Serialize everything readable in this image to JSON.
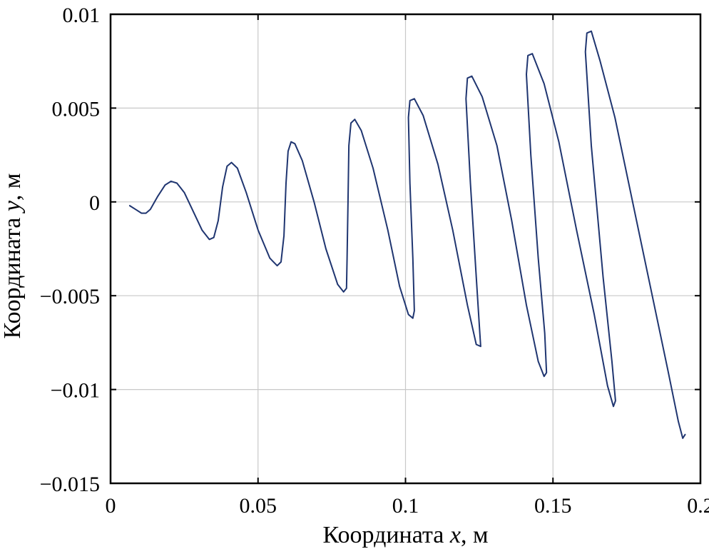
{
  "chart_data": {
    "type": "line",
    "xlabel_prefix": "Координата ",
    "xlabel_var": "x",
    "xlabel_suffix": ", м",
    "ylabel_prefix": "Координата ",
    "ylabel_var": "y",
    "ylabel_suffix": ", м",
    "xlim": [
      0,
      0.2
    ],
    "ylim": [
      -0.015,
      0.01
    ],
    "xticks": [
      0,
      0.05,
      0.1,
      0.15,
      0.2
    ],
    "xtick_labels": [
      "0",
      "0.05",
      "0.1",
      "0.15",
      "0.2"
    ],
    "yticks": [
      -0.015,
      -0.01,
      -0.005,
      0,
      0.005,
      0.01
    ],
    "ytick_labels": [
      "−0.015",
      "−0.01",
      "−0.005",
      "0",
      "0.005",
      "0.01"
    ],
    "grid": true,
    "line_color": "#1f3570",
    "series": [
      {
        "points": [
          [
            0.0065,
            -0.0002
          ],
          [
            0.0085,
            -0.0004
          ],
          [
            0.0105,
            -0.0006
          ],
          [
            0.012,
            -0.0006
          ],
          [
            0.0135,
            -0.0004
          ],
          [
            0.016,
            0.0003
          ],
          [
            0.0185,
            0.0009
          ],
          [
            0.0205,
            0.0011
          ],
          [
            0.0225,
            0.001
          ],
          [
            0.025,
            0.0005
          ],
          [
            0.028,
            -0.0005
          ],
          [
            0.031,
            -0.0015
          ],
          [
            0.0335,
            -0.002
          ],
          [
            0.035,
            -0.0019
          ],
          [
            0.0365,
            -0.001
          ],
          [
            0.038,
            0.0008
          ],
          [
            0.0395,
            0.0019
          ],
          [
            0.041,
            0.0021
          ],
          [
            0.043,
            0.0018
          ],
          [
            0.046,
            0.0005
          ],
          [
            0.05,
            -0.0015
          ],
          [
            0.054,
            -0.003
          ],
          [
            0.0565,
            -0.0034
          ],
          [
            0.0578,
            -0.0032
          ],
          [
            0.0588,
            -0.0018
          ],
          [
            0.0595,
            0.001
          ],
          [
            0.0602,
            0.0027
          ],
          [
            0.0612,
            0.0032
          ],
          [
            0.0625,
            0.0031
          ],
          [
            0.065,
            0.0022
          ],
          [
            0.069,
            0.0
          ],
          [
            0.073,
            -0.0025
          ],
          [
            0.077,
            -0.0044
          ],
          [
            0.079,
            -0.0048
          ],
          [
            0.08,
            -0.0046
          ],
          [
            0.0802,
            -0.003
          ],
          [
            0.0805,
            0.0
          ],
          [
            0.0808,
            0.003
          ],
          [
            0.0815,
            0.0042
          ],
          [
            0.0828,
            0.0044
          ],
          [
            0.085,
            0.0038
          ],
          [
            0.089,
            0.0018
          ],
          [
            0.094,
            -0.0015
          ],
          [
            0.098,
            -0.0045
          ],
          [
            0.101,
            -0.006
          ],
          [
            0.1025,
            -0.0062
          ],
          [
            0.103,
            -0.0058
          ],
          [
            0.1025,
            -0.003
          ],
          [
            0.1015,
            0.001
          ],
          [
            0.101,
            0.0045
          ],
          [
            0.1015,
            0.0054
          ],
          [
            0.103,
            0.0055
          ],
          [
            0.106,
            0.0046
          ],
          [
            0.111,
            0.002
          ],
          [
            0.116,
            -0.0015
          ],
          [
            0.121,
            -0.0055
          ],
          [
            0.124,
            -0.0076
          ],
          [
            0.1255,
            -0.0077
          ],
          [
            0.1252,
            -0.007
          ],
          [
            0.124,
            -0.004
          ],
          [
            0.122,
            0.001
          ],
          [
            0.1205,
            0.0055
          ],
          [
            0.121,
            0.0066
          ],
          [
            0.1225,
            0.0067
          ],
          [
            0.126,
            0.0056
          ],
          [
            0.131,
            0.003
          ],
          [
            0.136,
            -0.001
          ],
          [
            0.141,
            -0.0055
          ],
          [
            0.145,
            -0.0085
          ],
          [
            0.147,
            -0.0093
          ],
          [
            0.1478,
            -0.0091
          ],
          [
            0.1472,
            -0.007
          ],
          [
            0.145,
            -0.003
          ],
          [
            0.1425,
            0.0025
          ],
          [
            0.141,
            0.0068
          ],
          [
            0.1415,
            0.0078
          ],
          [
            0.143,
            0.0079
          ],
          [
            0.147,
            0.0063
          ],
          [
            0.152,
            0.0032
          ],
          [
            0.158,
            -0.0015
          ],
          [
            0.164,
            -0.006
          ],
          [
            0.1685,
            -0.0098
          ],
          [
            0.1705,
            -0.0109
          ],
          [
            0.1712,
            -0.0106
          ],
          [
            0.17,
            -0.0085
          ],
          [
            0.167,
            -0.004
          ],
          [
            0.163,
            0.003
          ],
          [
            0.161,
            0.008
          ],
          [
            0.1615,
            0.009
          ],
          [
            0.163,
            0.0091
          ],
          [
            0.166,
            0.0075
          ],
          [
            0.171,
            0.0045
          ],
          [
            0.177,
            0.0
          ],
          [
            0.183,
            -0.0045
          ],
          [
            0.189,
            -0.009
          ],
          [
            0.1925,
            -0.0117
          ],
          [
            0.194,
            -0.0126
          ],
          [
            0.1948,
            -0.0124
          ]
        ]
      }
    ]
  }
}
